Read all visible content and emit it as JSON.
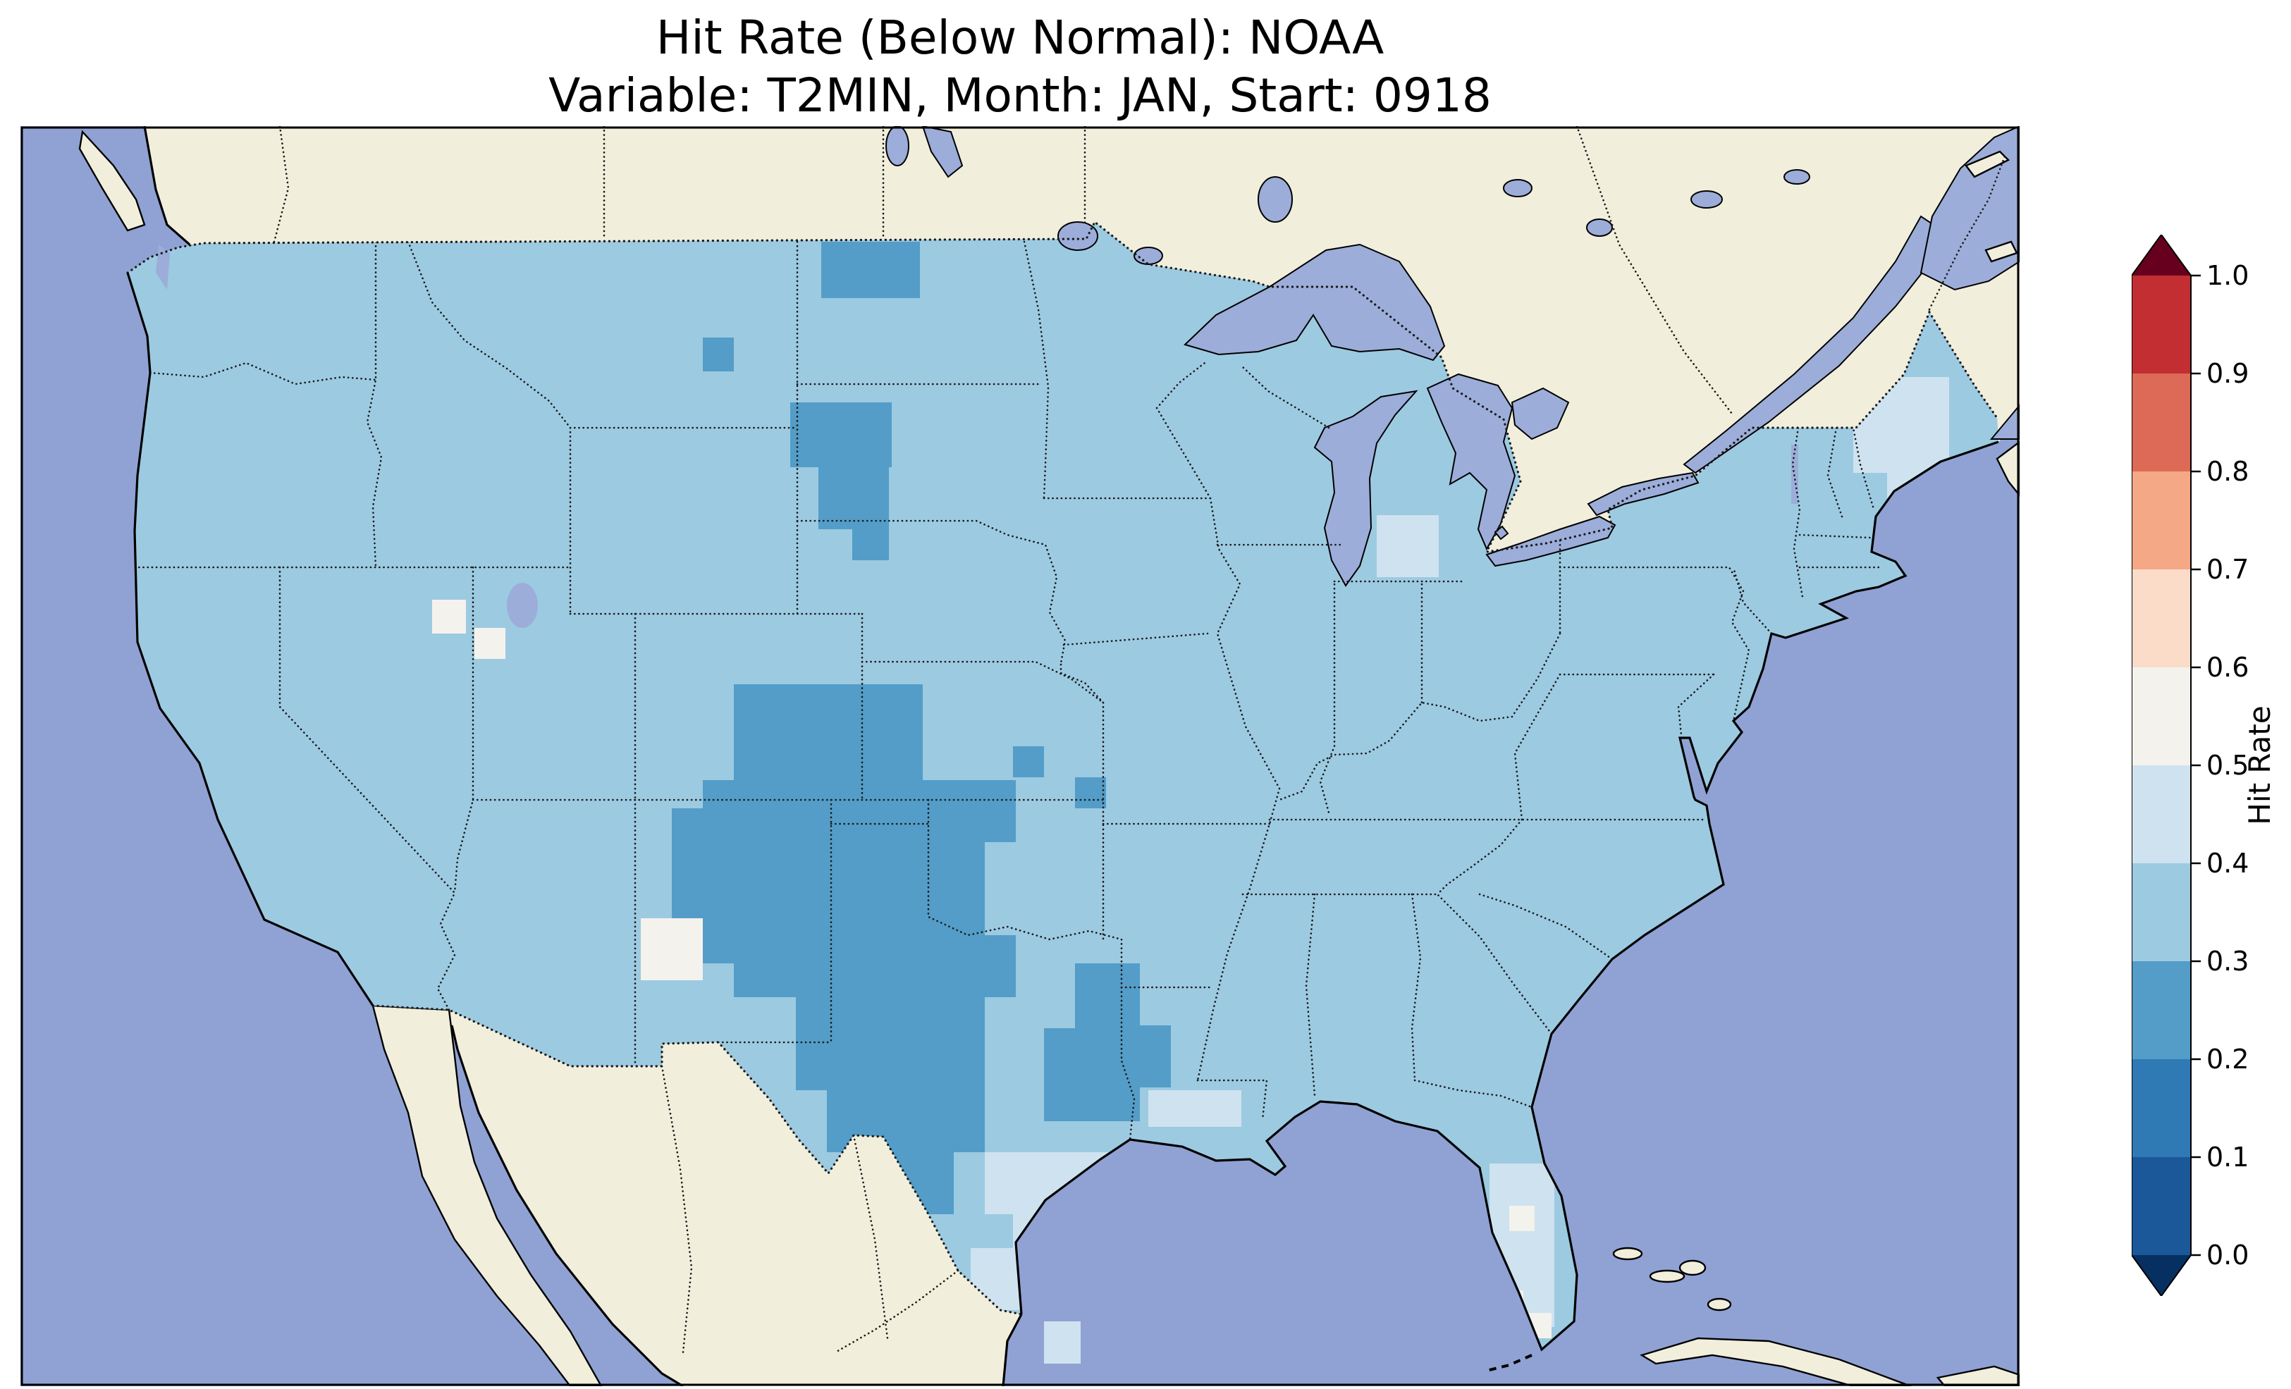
{
  "figure": {
    "title_line1": "Hit Rate (Below Normal): NOAA",
    "title_line2": "Variable: T2MIN, Month: JAN, Start: 0918"
  },
  "colorbar": {
    "label": "Hit Rate",
    "tick_labels": [
      "1.0",
      "0.9",
      "0.8",
      "0.7",
      "0.6",
      "0.5",
      "0.4",
      "0.3",
      "0.2",
      "0.1",
      "0.0"
    ],
    "segments_top_to_bottom": [
      "#c22e31",
      "#dd6a56",
      "#f5a886",
      "#fbdcc9",
      "#f4f2ed",
      "#cfe2ef",
      "#9ccae1",
      "#539dc8",
      "#2f79b5",
      "#1a5899"
    ],
    "extend_over_color": "#67001f",
    "extend_under_color": "#053061"
  },
  "map_colors": {
    "ocean": "#90a2d3",
    "lake": "#9cadd9",
    "land": "#f1eedc",
    "coastline": "#000000",
    "border_dots": "#1a1a1a"
  },
  "chart_data": {
    "type": "heatmap",
    "title": "Hit Rate (Below Normal): NOAA",
    "subtitle": "Variable: T2MIN, Month: JAN, Start: 0918",
    "metric": "Hit Rate (Below Normal)",
    "source": "NOAA",
    "variable": "T2MIN",
    "month": "JAN",
    "start": "0918",
    "domain": "Contiguous United States",
    "colorbar_label": "Hit Rate",
    "colorbar_ticks": [
      1.0,
      0.9,
      0.8,
      0.7,
      0.6,
      0.5,
      0.4,
      0.3,
      0.2,
      0.1,
      0.0
    ],
    "colorbar_range": [
      0.0,
      1.0
    ],
    "colorbar_extend": "both",
    "value_range_shown_on_map": [
      0.2,
      0.6
    ],
    "legend_position": "right",
    "base_bin": {
      "range": "0.3-0.4",
      "color": "#9ccae1",
      "coverage": "most of the contiguous US"
    },
    "bins": {
      "0.2-0.3": "#539dc8",
      "0.3-0.4": "#9ccae1",
      "0.4-0.5": "#cfe2ef",
      "0.5-0.6": "#f4f2ed"
    },
    "regions": [
      {
        "bin": "0.2-0.3",
        "name": "north-dakota-patch",
        "rects": [
          [
            568,
            82,
            70,
            40
          ]
        ]
      },
      {
        "bin": "0.2-0.3",
        "name": "montana-cell",
        "rects": [
          [
            484,
            150,
            22,
            24
          ]
        ]
      },
      {
        "bin": "0.2-0.3",
        "name": "south-dakota-patch",
        "rects": [
          [
            546,
            196,
            72,
            46
          ],
          [
            566,
            242,
            50,
            44
          ],
          [
            590,
            286,
            26,
            22
          ]
        ]
      },
      {
        "bin": "0.2-0.3",
        "name": "central-plains-cluster",
        "rects": [
          [
            506,
            396,
            134,
            68
          ],
          [
            484,
            464,
            200,
            88
          ],
          [
            462,
            484,
            46,
            110
          ],
          [
            506,
            552,
            178,
            66
          ],
          [
            550,
            618,
            134,
            66
          ],
          [
            572,
            684,
            112,
            44
          ],
          [
            594,
            728,
            68,
            44
          ],
          [
            684,
            464,
            22,
            44
          ],
          [
            684,
            574,
            22,
            44
          ]
        ]
      },
      {
        "bin": "0.2-0.3",
        "name": "east-texas-louisiana-patch",
        "rects": [
          [
            748,
            594,
            46,
            112
          ],
          [
            726,
            640,
            24,
            66
          ],
          [
            794,
            638,
            22,
            44
          ]
        ]
      },
      {
        "bin": "0.2-0.3",
        "name": "scattered-dark-cells",
        "rects": [
          [
            704,
            440,
            22,
            22
          ],
          [
            748,
            462,
            22,
            22
          ]
        ]
      },
      {
        "bin": "0.4-0.5",
        "name": "texas-coast-patch",
        "rects": [
          [
            684,
            728,
            90,
            44
          ],
          [
            704,
            772,
            46,
            24
          ],
          [
            674,
            796,
            44,
            44
          ]
        ]
      },
      {
        "bin": "0.4-0.5",
        "name": "louisiana-coast-patch",
        "rects": [
          [
            800,
            684,
            66,
            26
          ]
        ]
      },
      {
        "bin": "0.4-0.5",
        "name": "florida-peninsula-patch",
        "rects": [
          [
            1042,
            736,
            46,
            90
          ],
          [
            1062,
            826,
            26,
            26
          ]
        ]
      },
      {
        "bin": "0.4-0.5",
        "name": "northern-new-england-patch",
        "rects": [
          [
            1300,
            178,
            68,
            68
          ],
          [
            1324,
            246,
            44,
            40
          ]
        ]
      },
      {
        "bin": "0.4-0.5",
        "name": "michigan-cells",
        "rects": [
          [
            962,
            276,
            44,
            44
          ]
        ]
      },
      {
        "bin": "0.4-0.5",
        "name": "mexico-coast-stray-cells",
        "rects": [
          [
            726,
            848,
            26,
            30
          ]
        ],
        "clip": false
      },
      {
        "bin": "0.5-0.6",
        "name": "nevada-cells",
        "rects": [
          [
            292,
            336,
            24,
            24
          ],
          [
            322,
            356,
            22,
            22
          ]
        ]
      },
      {
        "bin": "0.5-0.6",
        "name": "new-mexico-patch",
        "rects": [
          [
            440,
            562,
            44,
            44
          ]
        ]
      },
      {
        "bin": "0.5-0.6",
        "name": "florida-white-cells",
        "rects": [
          [
            1046,
            826,
            20,
            20
          ],
          [
            1068,
            842,
            18,
            18
          ],
          [
            1056,
            766,
            18,
            18
          ]
        ]
      }
    ]
  }
}
